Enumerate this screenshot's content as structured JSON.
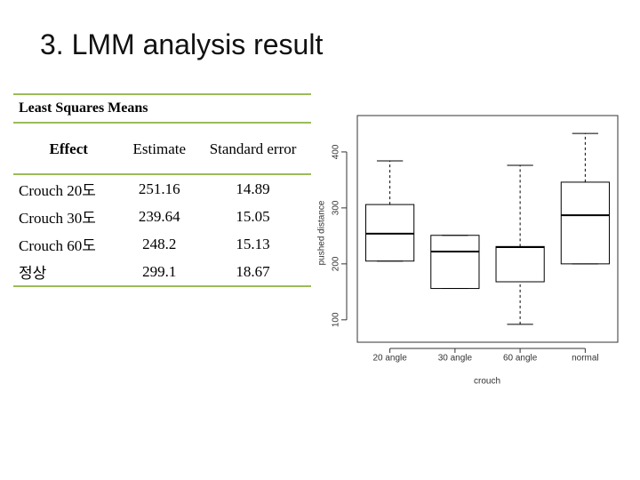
{
  "title": "3. LMM analysis result",
  "table": {
    "caption": "Least Squares Means",
    "header": [
      "Effect",
      "Estimate",
      "Standard error"
    ],
    "rows": [
      [
        "Crouch 20도",
        "251.16",
        "14.89"
      ],
      [
        "Crouch 30도",
        "239.64",
        "15.05"
      ],
      [
        "Crouch 60도",
        "248.2",
        "15.13"
      ],
      [
        "정상",
        "299.1",
        "18.67"
      ]
    ]
  },
  "chart_data": {
    "type": "boxplot",
    "x_label": "crouch",
    "y_label": "pushed distance",
    "categories": [
      "20 angle",
      "30 angle",
      "60 angle",
      "normal"
    ],
    "min": [
      205,
      156,
      92,
      200
    ],
    "q1": [
      205,
      156,
      168,
      200
    ],
    "median": [
      254,
      222,
      230,
      287
    ],
    "q3": [
      306,
      251,
      231,
      346
    ],
    "max": [
      384,
      251,
      376,
      433
    ],
    "color": "#000000",
    "ylim": [
      60,
      465
    ],
    "yticks": [
      100,
      200,
      300,
      400
    ]
  }
}
